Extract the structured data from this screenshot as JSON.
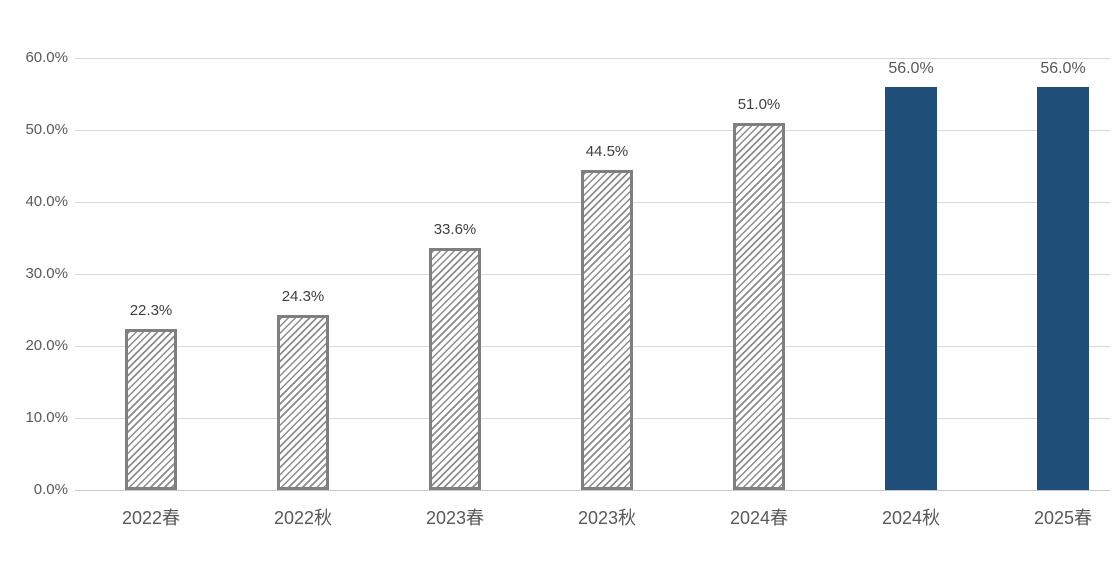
{
  "chart_data": {
    "type": "bar",
    "title": "",
    "xlabel": "",
    "ylabel": "",
    "categories": [
      "2022春",
      "2022秋",
      "2023春",
      "2023秋",
      "2024春",
      "2024秋",
      "2025春"
    ],
    "values": [
      22.3,
      24.3,
      33.6,
      44.5,
      51.0,
      56.0,
      56.0
    ],
    "value_labels": [
      "22.3%",
      "24.3%",
      "33.6%",
      "44.5%",
      "51.0%",
      "56.0%",
      "56.0%"
    ],
    "bar_styles": [
      "hatched",
      "hatched",
      "hatched",
      "hatched",
      "hatched",
      "solid",
      "solid"
    ],
    "y_ticks": [
      "60.0%",
      "50.0%",
      "40.0%",
      "30.0%",
      "20.0%",
      "10.0%",
      "0.0%"
    ],
    "ylim": [
      0,
      60
    ],
    "grid": "horizontal",
    "legend": "none",
    "colors": {
      "solid_bar": "#1f4e79",
      "hatch_line": "#8c8c8c",
      "hatch_border": "#7f7f7f",
      "gridline": "#d9d9d9",
      "axis_line": "#c8c8c8",
      "tick_label": "#595959",
      "value_label": "#404040",
      "value_label_solid": "#595959",
      "background": "#ffffff"
    }
  }
}
